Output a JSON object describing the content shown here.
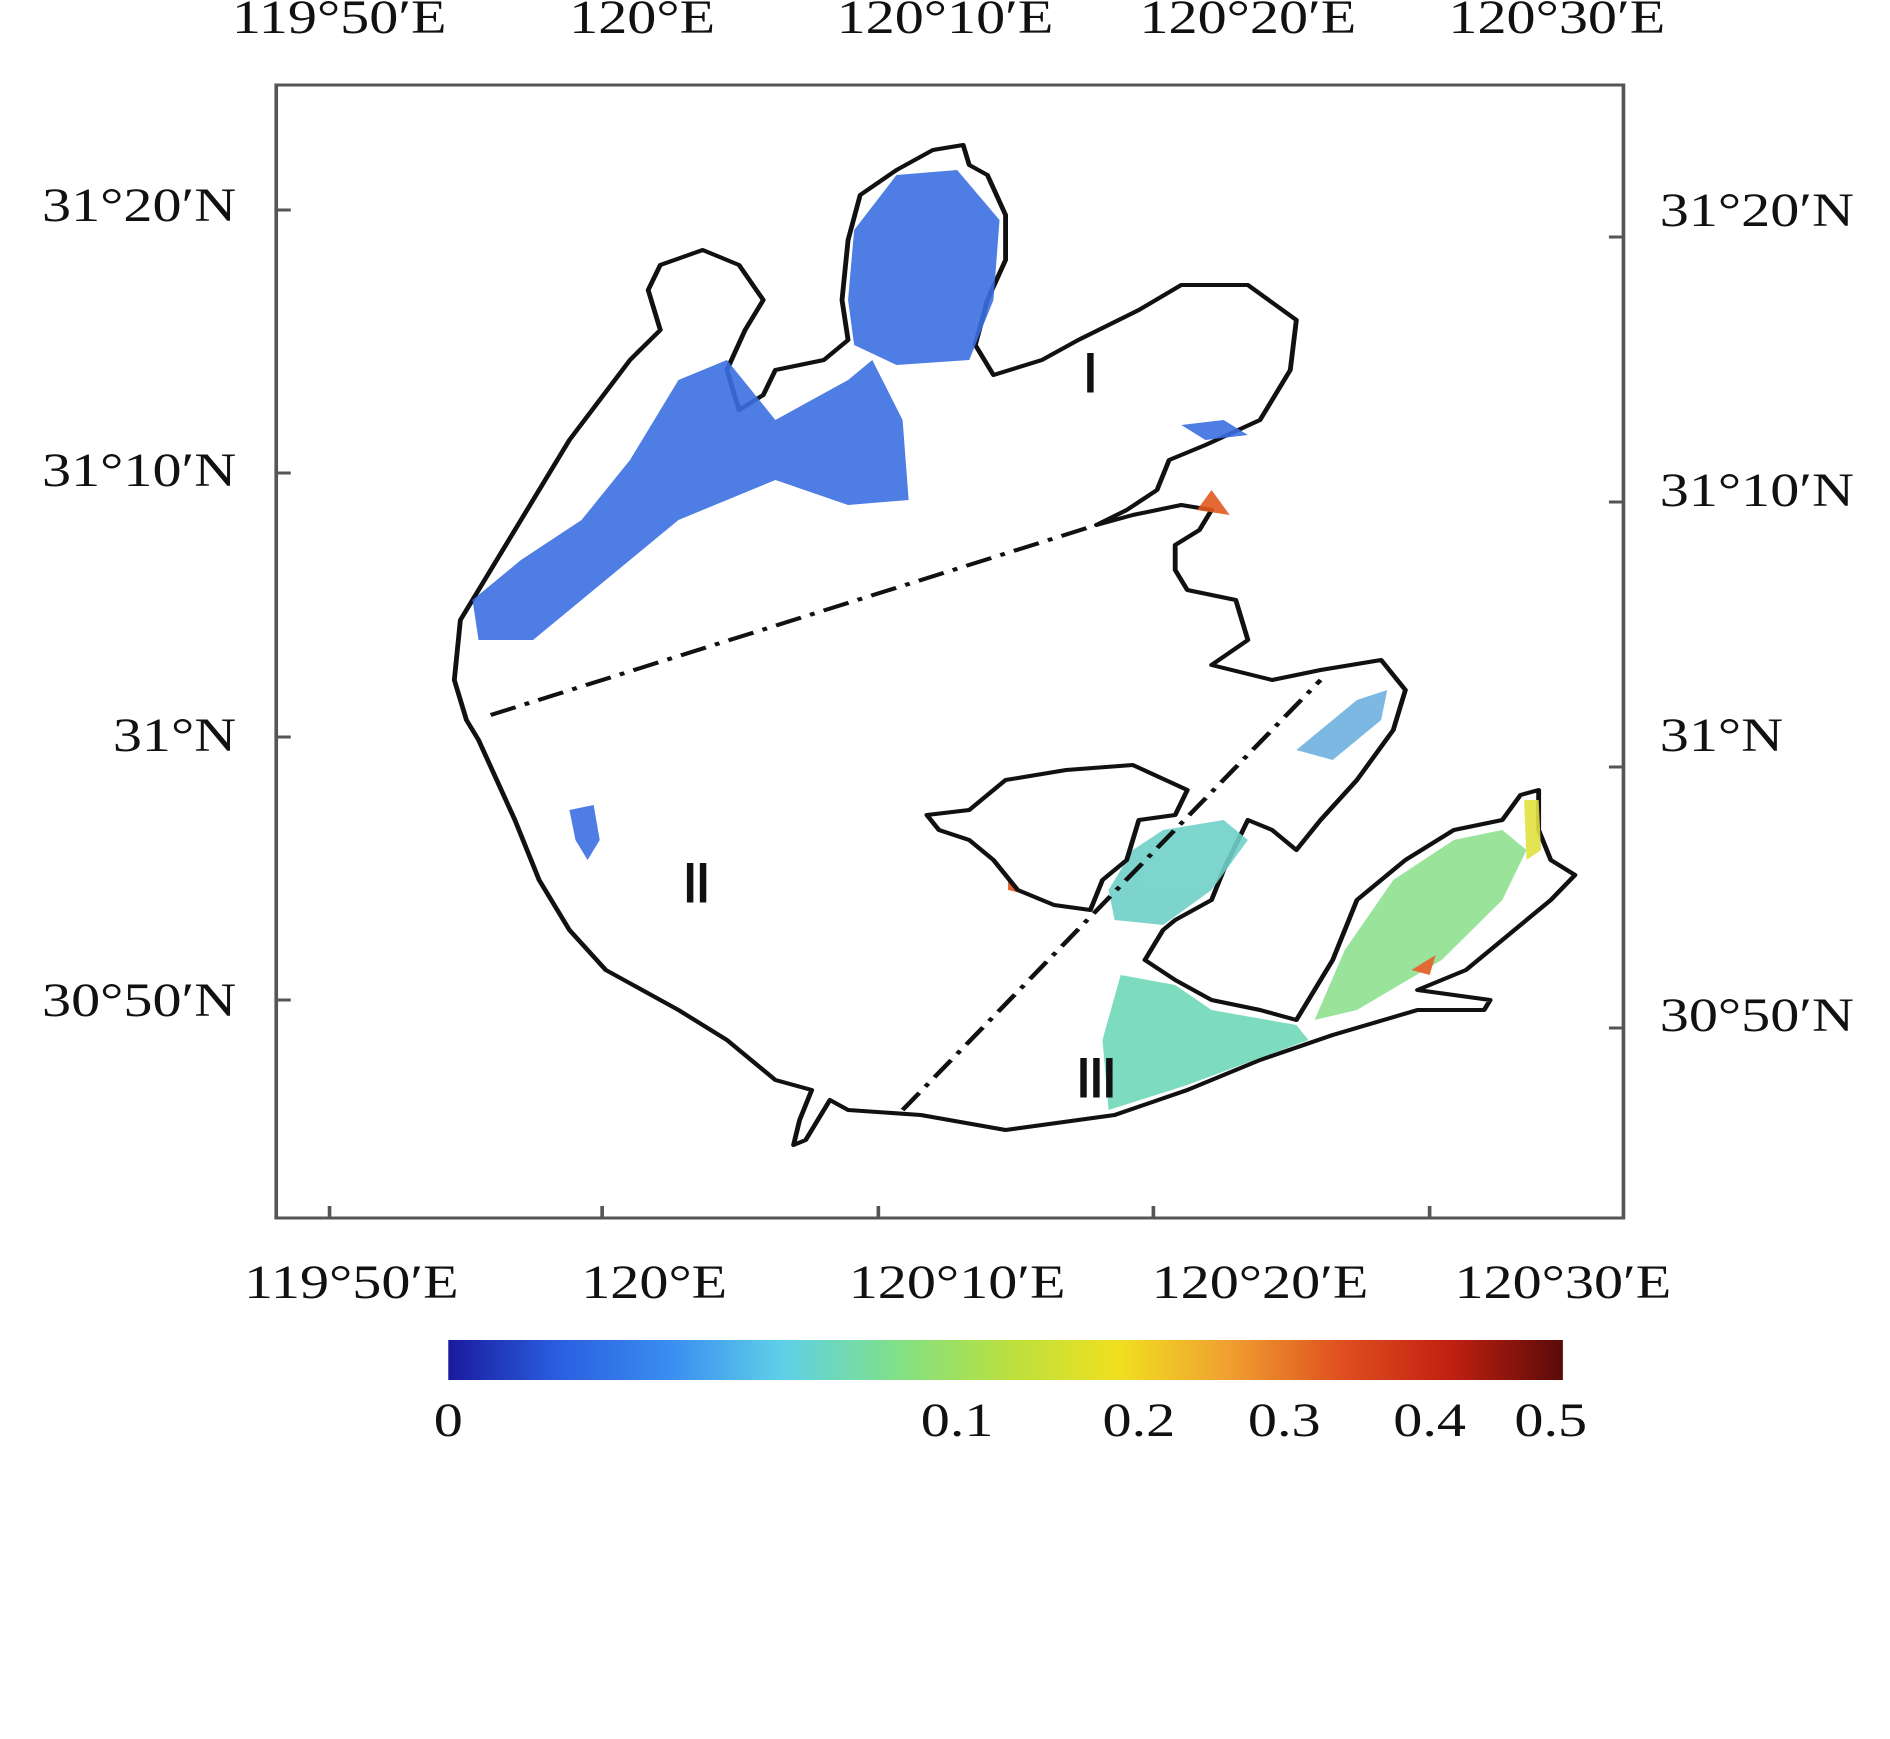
{
  "map": {
    "top_axis_labels": [
      "119°50′E",
      "120°E",
      "120°10′E",
      "120°20′E",
      "120°30′E"
    ],
    "bottom_axis_labels": [
      "119°50′E",
      "120°E",
      "120°10′E",
      "120°20′E",
      "120°30′E"
    ],
    "left_axis_labels": [
      "31°20′N",
      "31°10′N",
      "31°N",
      "30°50′N"
    ],
    "right_axis_labels": [
      "31°20′N",
      "31°10′N",
      "31°N",
      "30°50′N"
    ],
    "regions": [
      "Ⅰ",
      "Ⅱ",
      "Ⅲ"
    ],
    "colorbar": {
      "ticks": [
        0,
        0.1,
        0.2,
        0.3,
        0.4,
        0.5
      ],
      "colors": [
        "#1a1a9e",
        "#2a5fe0",
        "#3a8ef0",
        "#5fd0e8",
        "#7fe08a",
        "#b8e040",
        "#f0e020",
        "#f0a030",
        "#e05020",
        "#c02010",
        "#5a0a0a"
      ]
    }
  }
}
